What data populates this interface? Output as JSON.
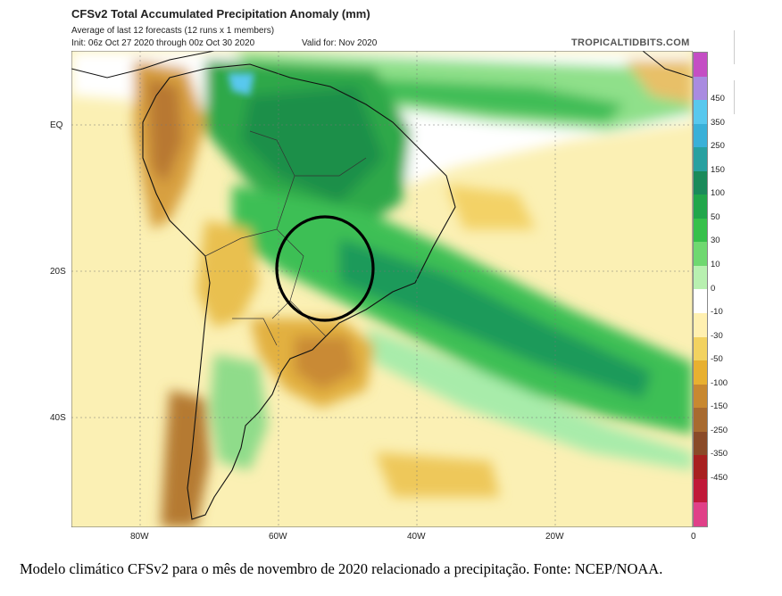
{
  "header": {
    "title": "CFSv2 Total Accumulated Precipitation Anomaly (mm)",
    "subtitle": "Average of last 12 forecasts (12 runs x 1 members)",
    "init": "Init: 06z Oct 27 2020 through 00z Oct 30 2020",
    "valid": "Valid for: Nov 2020",
    "brand": "TROPICALTIDBITS.COM"
  },
  "axes": {
    "lat_labels": [
      "EQ",
      "20S",
      "40S"
    ],
    "lon_labels": [
      "80W",
      "60W",
      "40W",
      "20W",
      "0"
    ]
  },
  "colorbar": {
    "labels": [
      "450",
      "350",
      "250",
      "150",
      "100",
      "50",
      "30",
      "10",
      "0",
      "-10",
      "-30",
      "-50",
      "-100",
      "-150",
      "-250",
      "-350",
      "-450"
    ],
    "colors": [
      "#c44ec4",
      "#a98be0",
      "#58c8ee",
      "#3ab0d8",
      "#28a0a0",
      "#1a8a5a",
      "#21a64a",
      "#36c04a",
      "#6fd870",
      "#b8f0b0",
      "#ffffff",
      "#fff0b0",
      "#f2d260",
      "#e8b030",
      "#c88830",
      "#a86a30",
      "#8a4a28",
      "#a82020",
      "#c01838",
      "#e04088"
    ]
  },
  "annotation": {
    "shape": "circle",
    "meaning": "highlighted region"
  },
  "caption": "Modelo climático CFSv2 para o mês de novembro de 2020 relacionado a precipitação. Fonte: NCEP/NOAA."
}
